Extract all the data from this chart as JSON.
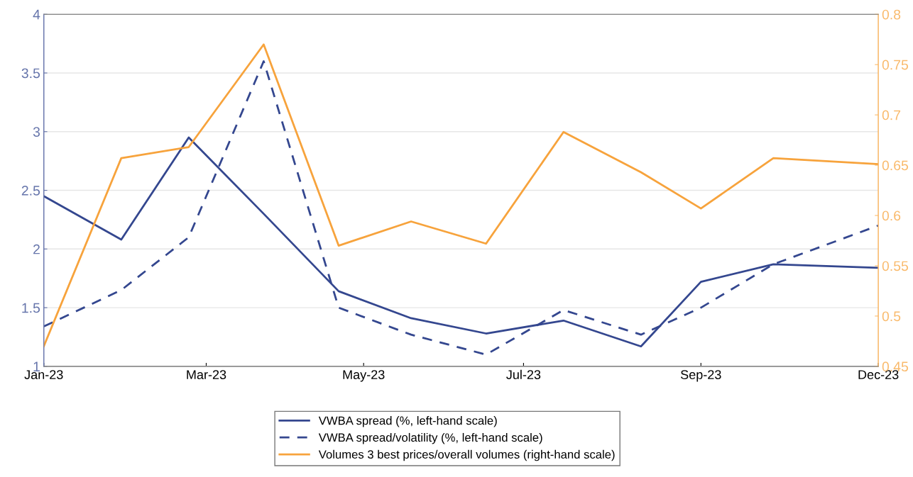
{
  "chart_data": {
    "type": "line",
    "x": [
      "2023-01-01",
      "2023-02-01",
      "2023-02-28",
      "2023-03-30",
      "2023-04-29",
      "2023-05-28",
      "2023-06-27",
      "2023-07-28",
      "2023-08-28",
      "2023-09-21",
      "2023-10-20",
      "2023-12-01"
    ],
    "series": [
      {
        "name": "VWBA spread (%, left-hand scale)",
        "color": "#34478f",
        "line_style": "solid",
        "values": [
          2.45,
          2.08,
          2.95,
          2.3,
          1.64,
          1.41,
          1.28,
          1.39,
          1.17,
          1.72,
          1.87,
          1.84
        ]
      },
      {
        "name": "VWBA spread/volatility (%, left-hand scale)",
        "color": "#34478f",
        "line_style": "dashed",
        "values": [
          1.34,
          1.65,
          2.1,
          3.6,
          1.5,
          1.27,
          1.1,
          1.48,
          1.27,
          1.5,
          1.87,
          2.2
        ]
      },
      {
        "name": "Volumes 3 best prices/overall volumes (right-hand scale)",
        "color": "#f7a33c",
        "axis": "y2",
        "line_style": "solid",
        "values": [
          0.47,
          0.657,
          0.668,
          0.77,
          0.57,
          0.594,
          0.572,
          0.683,
          0.643,
          0.607,
          0.657,
          0.651
        ]
      }
    ],
    "xlim": [
      "2023-01-01",
      "2023-12-01"
    ],
    "xticks": [
      {
        "value": "2023-01-01",
        "label": "Jan-23"
      },
      {
        "value": "2023-03-07",
        "label": "Mar-23"
      },
      {
        "value": "2023-05-09",
        "label": "May-23"
      },
      {
        "value": "2023-07-12",
        "label": "Jul-23"
      },
      {
        "value": "2023-09-21",
        "label": "Sep-23"
      },
      {
        "value": "2023-12-01",
        "label": "Dec-23"
      }
    ],
    "ylim": [
      1,
      4
    ],
    "yticks": [
      1,
      1.5,
      2,
      2.5,
      3,
      3.5,
      4
    ],
    "y2lim": [
      0.45,
      0.8
    ],
    "y2ticks": [
      0.45,
      0.5,
      0.55,
      0.6,
      0.65,
      0.7,
      0.75,
      0.8
    ],
    "grid": "y",
    "legend": "bottom",
    "marker": "none"
  }
}
